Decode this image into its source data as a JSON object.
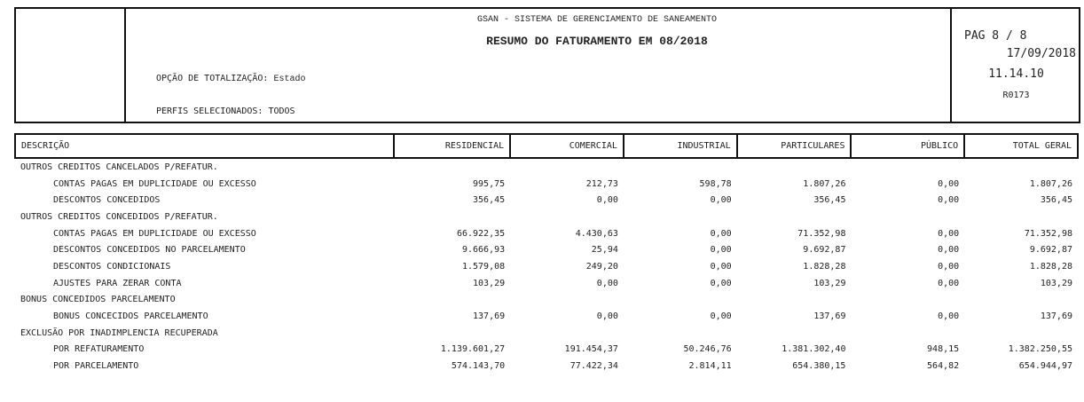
{
  "header": {
    "system": "GSAN - SISTEMA DE GERENCIAMENTO DE SANEAMENTO",
    "title": "RESUMO DO FATURAMENTO EM 08/2018",
    "option_label": "OPÇÃO DE TOTALIZAÇÃO:",
    "option_value": "Estado",
    "profiles_label": "PERFIS SELECIONADOS:",
    "profiles_value": "TODOS",
    "page": "PAG 8 / 8",
    "date": "17/09/2018",
    "time": "11.14.10",
    "report": "R0173"
  },
  "columns": [
    "DESCRIÇÃO",
    "RESIDENCIAL",
    "COMERCIAL",
    "INDUSTRIAL",
    "PARTICULARES",
    "PÚBLICO",
    "TOTAL GERAL"
  ],
  "rows": [
    {
      "group": true,
      "desc": "OUTROS CREDITOS CANCELADOS P/REFATUR."
    },
    {
      "desc": "CONTAS PAGAS EM DUPLICIDADE OU EXCESSO",
      "v": [
        "995,75",
        "212,73",
        "598,78",
        "1.807,26",
        "0,00",
        "1.807,26"
      ]
    },
    {
      "desc": "DESCONTOS CONCEDIDOS",
      "v": [
        "356,45",
        "0,00",
        "0,00",
        "356,45",
        "0,00",
        "356,45"
      ]
    },
    {
      "group": true,
      "desc": "OUTROS CREDITOS CONCEDIDOS P/REFATUR."
    },
    {
      "desc": "CONTAS PAGAS EM DUPLICIDADE OU EXCESSO",
      "v": [
        "66.922,35",
        "4.430,63",
        "0,00",
        "71.352,98",
        "0,00",
        "71.352,98"
      ]
    },
    {
      "desc": "DESCONTOS CONCEDIDOS NO PARCELAMENTO",
      "v": [
        "9.666,93",
        "25,94",
        "0,00",
        "9.692,87",
        "0,00",
        "9.692,87"
      ]
    },
    {
      "desc": "DESCONTOS CONDICIONAIS",
      "v": [
        "1.579,08",
        "249,20",
        "0,00",
        "1.828,28",
        "0,00",
        "1.828,28"
      ]
    },
    {
      "desc": "AJUSTES PARA ZERAR CONTA",
      "v": [
        "103,29",
        "0,00",
        "0,00",
        "103,29",
        "0,00",
        "103,29"
      ]
    },
    {
      "group": true,
      "desc": "BONUS CONCEDIDOS PARCELAMENTO"
    },
    {
      "desc": "BONUS CONCECIDOS PARCELAMENTO",
      "v": [
        "137,69",
        "0,00",
        "0,00",
        "137,69",
        "0,00",
        "137,69"
      ]
    },
    {
      "group": true,
      "desc": "EXCLUSÃO POR INADIMPLENCIA RECUPERADA"
    },
    {
      "desc": "POR REFATURAMENTO",
      "v": [
        "1.139.601,27",
        "191.454,37",
        "50.246,76",
        "1.381.302,40",
        "948,15",
        "1.382.250,55"
      ]
    },
    {
      "desc": "POR PARCELAMENTO",
      "v": [
        "574.143,70",
        "77.422,34",
        "2.814,11",
        "654.380,15",
        "564,82",
        "654.944,97"
      ]
    }
  ]
}
